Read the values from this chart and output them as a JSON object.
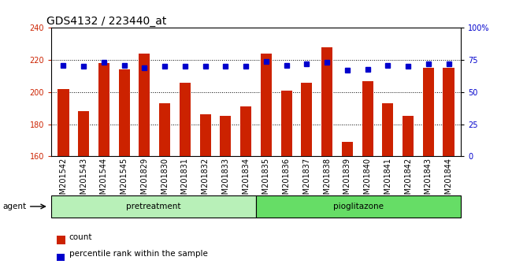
{
  "title": "GDS4132 / 223440_at",
  "samples": [
    "GSM201542",
    "GSM201543",
    "GSM201544",
    "GSM201545",
    "GSM201829",
    "GSM201830",
    "GSM201831",
    "GSM201832",
    "GSM201833",
    "GSM201834",
    "GSM201835",
    "GSM201836",
    "GSM201837",
    "GSM201838",
    "GSM201839",
    "GSM201840",
    "GSM201841",
    "GSM201842",
    "GSM201843",
    "GSM201844"
  ],
  "counts": [
    202,
    188,
    218,
    214,
    224,
    193,
    206,
    186,
    185,
    191,
    224,
    201,
    206,
    228,
    169,
    207,
    193,
    185,
    215,
    215
  ],
  "percentile_ranks": [
    71,
    70,
    73,
    71,
    69,
    70,
    70,
    70,
    70,
    70,
    74,
    71,
    72,
    73,
    67,
    68,
    71,
    70,
    72,
    72
  ],
  "group_labels": [
    "pretreatment",
    "pioglitazone"
  ],
  "group_sizes": [
    10,
    10
  ],
  "bar_color": "#cc2200",
  "dot_color": "#0000cc",
  "group_color_1": "#b8f0b8",
  "group_color_2": "#66dd66",
  "ylim_left": [
    160,
    240
  ],
  "ylim_right": [
    0,
    100
  ],
  "yticks_left": [
    160,
    180,
    200,
    220,
    240
  ],
  "yticks_right": [
    0,
    25,
    50,
    75,
    100
  ],
  "ytick_labels_right": [
    "0",
    "25",
    "50",
    "75",
    "100%"
  ],
  "bar_width": 0.55,
  "title_fontsize": 10,
  "tick_fontsize": 7,
  "legend_count_label": "count",
  "legend_pct_label": "percentile rank within the sample",
  "agent_label": "agent"
}
